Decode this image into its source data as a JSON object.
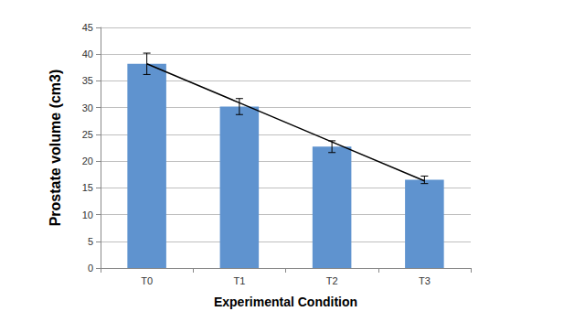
{
  "chart_data": {
    "type": "bar",
    "x_label": "Experimental Condition",
    "y_label": "Prostate volume (cm3)",
    "categories": [
      "T0",
      "T1",
      "T2",
      "T3"
    ],
    "series": [
      {
        "type": "bar",
        "color": "#5f93cf",
        "values": [
          38.2,
          30.2,
          22.7,
          16.5
        ],
        "errors": [
          2.0,
          1.5,
          1.1,
          0.7
        ]
      },
      {
        "type": "line",
        "color": "#000000",
        "values": [
          38.2,
          30.9,
          23.6,
          16.3
        ]
      }
    ],
    "ylim": [
      0,
      45
    ],
    "yticks": [
      0,
      5,
      10,
      15,
      20,
      25,
      30,
      35,
      40,
      45
    ],
    "grid": true
  }
}
